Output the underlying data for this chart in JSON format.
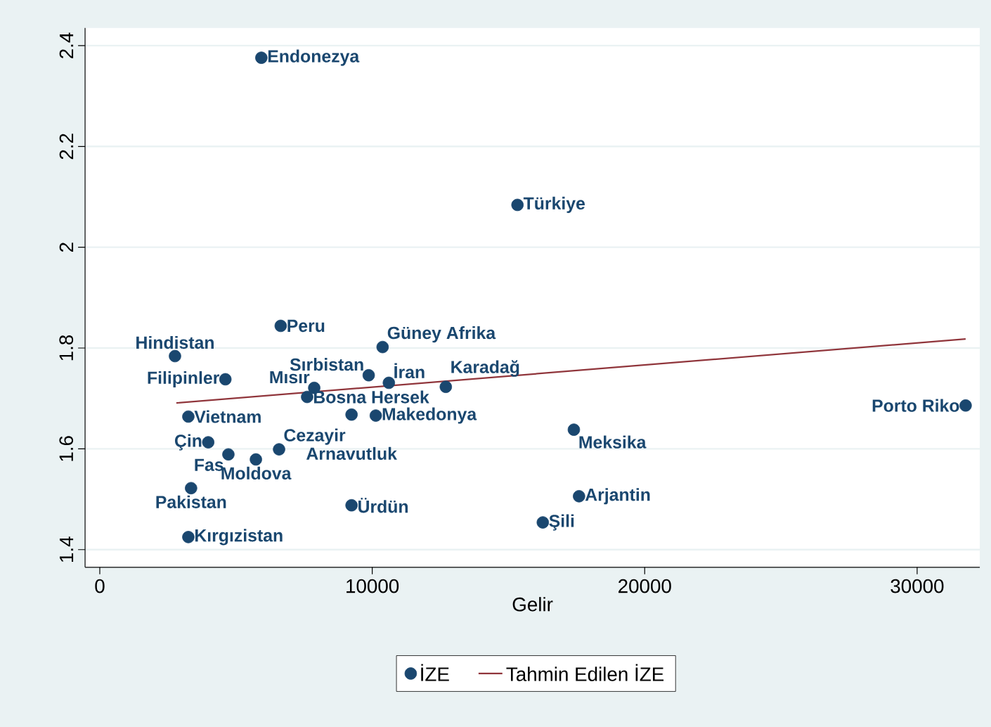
{
  "chart_data": {
    "type": "scatter",
    "xlabel": "Gelir",
    "series": [
      {
        "name": "İZE",
        "color": "#1a476f",
        "x": [
          5930,
          15330,
          2760,
          6640,
          10380,
          4610,
          9870,
          10610,
          7870,
          7610,
          12700,
          3250,
          10130,
          9240,
          3980,
          6580,
          4720,
          5730,
          3350,
          9240,
          3250,
          17400,
          17590,
          16260,
          31780
        ],
        "values": [
          2.376,
          2.084,
          1.784,
          1.844,
          1.802,
          1.738,
          1.746,
          1.731,
          1.721,
          1.703,
          1.723,
          1.664,
          1.666,
          1.668,
          1.613,
          1.599,
          1.589,
          1.579,
          1.522,
          1.488,
          1.425,
          1.638,
          1.506,
          1.454,
          1.686
        ]
      },
      {
        "name": "Tahmin Edilen İZE",
        "type": "line",
        "color": "#90353b",
        "x": [
          2810,
          31780
        ],
        "values": [
          1.691,
          1.818
        ]
      }
    ],
    "annotations": [
      {
        "text": "Endonezya",
        "x": 5930,
        "y": 2.376
      },
      {
        "text": "Türkiye",
        "x": 15330,
        "y": 2.084
      },
      {
        "text": "Hindistan",
        "x": 2760,
        "y": 1.784
      },
      {
        "text": "Peru",
        "x": 6640,
        "y": 1.844
      },
      {
        "text": "Güney Afrika",
        "x": 10380,
        "y": 1.802
      },
      {
        "text": "Filipinler",
        "x": 4610,
        "y": 1.738
      },
      {
        "text": "Sırbistan",
        "x": 9870,
        "y": 1.746
      },
      {
        "text": "İran",
        "x": 10610,
        "y": 1.731
      },
      {
        "text": "Mısır",
        "x": 7870,
        "y": 1.721
      },
      {
        "text": "Bosna Hersek",
        "x": 7610,
        "y": 1.703
      },
      {
        "text": "Karadağ",
        "x": 12700,
        "y": 1.723
      },
      {
        "text": "Vietnam",
        "x": 3250,
        "y": 1.664
      },
      {
        "text": "Makedonya",
        "x": 10130,
        "y": 1.666
      },
      {
        "text": "Arnavutluk",
        "x": 9240,
        "y": 1.668
      },
      {
        "text": "Çin",
        "x": 3980,
        "y": 1.613
      },
      {
        "text": "Cezayir",
        "x": 6580,
        "y": 1.599
      },
      {
        "text": "Fas",
        "x": 4720,
        "y": 1.589
      },
      {
        "text": "Moldova",
        "x": 5730,
        "y": 1.579
      },
      {
        "text": "Pakistan",
        "x": 3350,
        "y": 1.522
      },
      {
        "text": "Ürdün",
        "x": 9240,
        "y": 1.488
      },
      {
        "text": "Kırgızistan",
        "x": 3250,
        "y": 1.425
      },
      {
        "text": "Meksika",
        "x": 17400,
        "y": 1.638
      },
      {
        "text": "Arjantin",
        "x": 17590,
        "y": 1.506
      },
      {
        "text": "Şili",
        "x": 16260,
        "y": 1.454
      },
      {
        "text": "Porto Riko",
        "x": 31780,
        "y": 1.686
      }
    ],
    "xlim": [
      -540,
      32300
    ],
    "ylim": [
      1.365,
      2.435
    ],
    "xticks": [
      0,
      10000,
      20000,
      30000
    ],
    "yticks": [
      1.4,
      1.6,
      1.8,
      2,
      2.2,
      2.4
    ],
    "grid": "y",
    "legend": "bottom"
  }
}
